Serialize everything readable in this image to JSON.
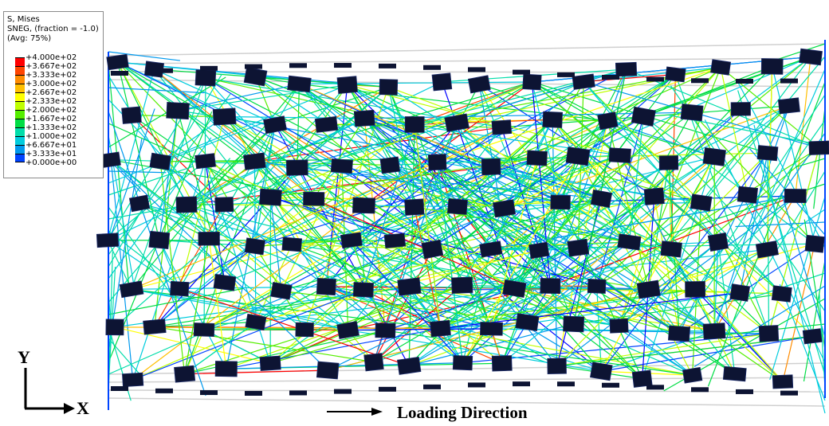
{
  "legend": {
    "line1": "S, Mises",
    "line2": "SNEG, (fraction = -1.0)",
    "line3": "(Avg: 75%)",
    "ticks": [
      "+4.000e+02",
      "+3.667e+02",
      "+3.333e+02",
      "+3.000e+02",
      "+2.667e+02",
      "+2.333e+02",
      "+2.000e+02",
      "+1.667e+02",
      "+1.333e+02",
      "+1.000e+02",
      "+6.667e+01",
      "+3.333e+01",
      "+0.000e+00"
    ],
    "colors": [
      "#ff0000",
      "#ff4500",
      "#ff8c00",
      "#ffbf00",
      "#ffff00",
      "#bfff00",
      "#55ee00",
      "#00dd44",
      "#00ddaa",
      "#00ccdd",
      "#0099ee",
      "#0044ff",
      "#0000ff"
    ]
  },
  "axes": {
    "y_label": "Y",
    "x_label": "X"
  },
  "annotation": {
    "loading_direction": "Loading Direction"
  },
  "colors": {
    "node": "#0d1433",
    "background": "#ffffff",
    "ghost_line": "#d0d0d0"
  }
}
